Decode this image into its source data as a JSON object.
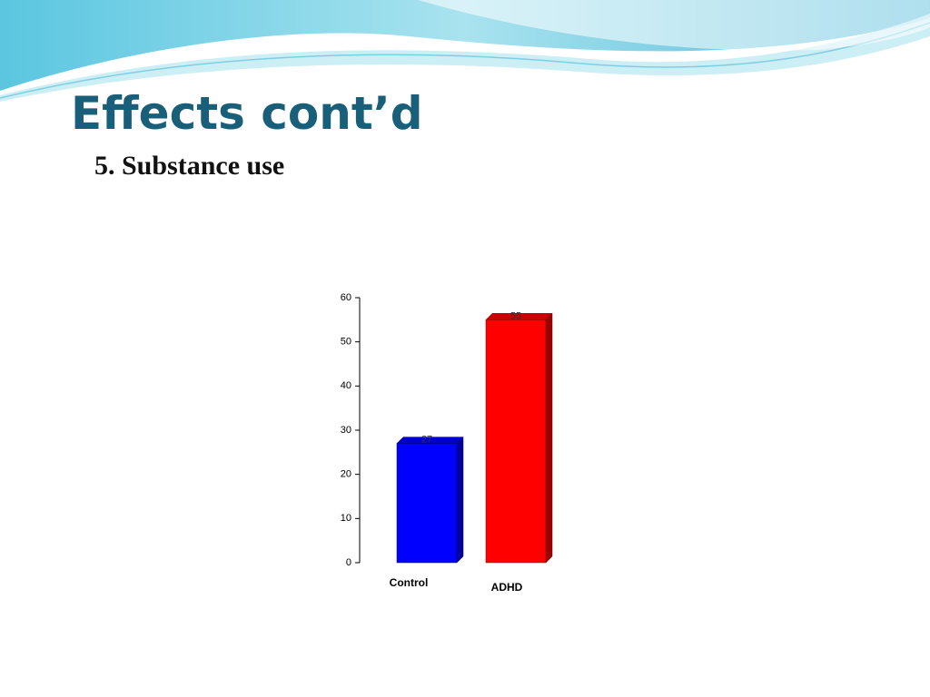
{
  "chart_data": {
    "type": "bar",
    "title": "Effects cont’d",
    "subtitle": "5. Substance use",
    "categories": [
      "Control",
      "ADHD"
    ],
    "values": [
      27,
      55
    ],
    "colors": [
      "#0000ff",
      "#ff0000"
    ],
    "ylim": [
      0,
      60
    ],
    "yticks": [
      0,
      10,
      20,
      30,
      40,
      50,
      60
    ],
    "grid": false
  }
}
